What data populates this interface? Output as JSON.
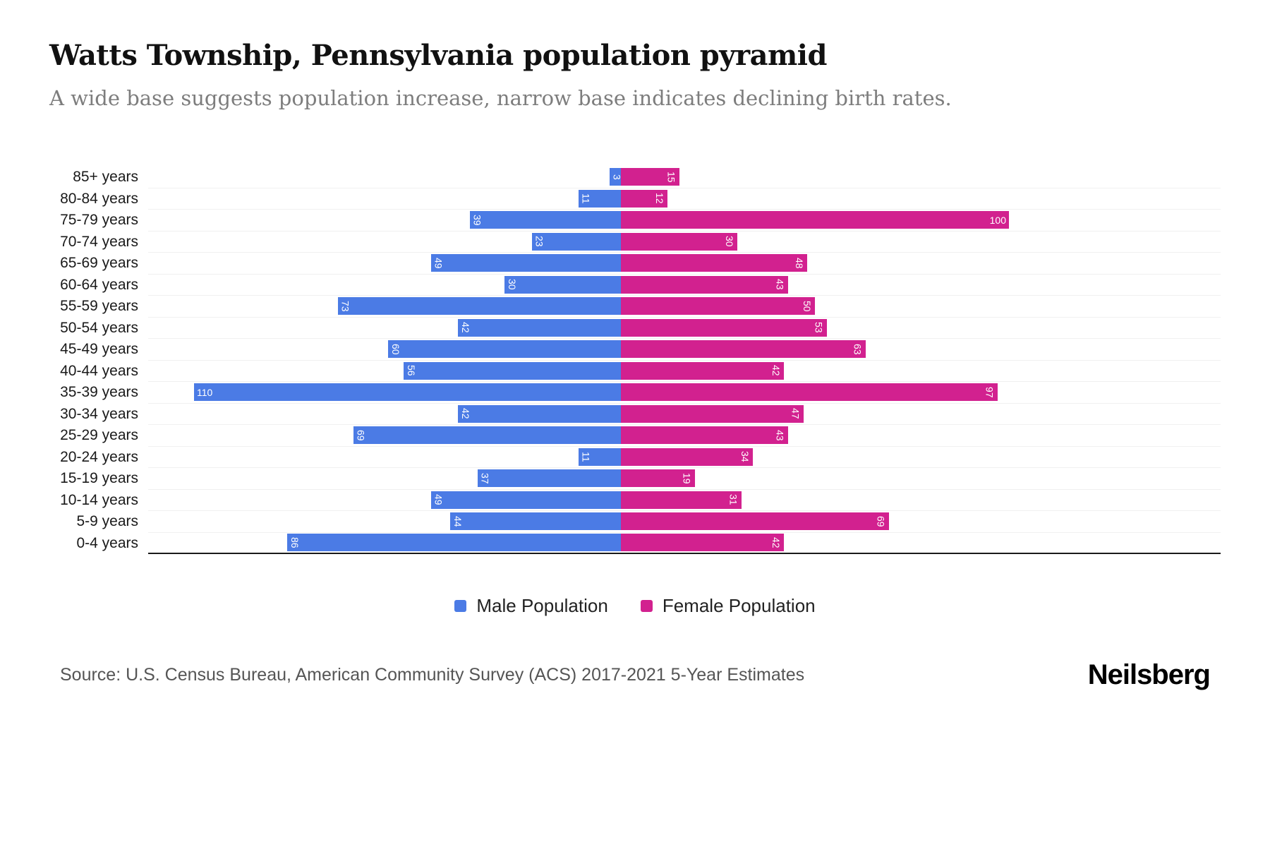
{
  "header": {
    "title": "Watts Township, Pennsylvania population pyramid",
    "subtitle": "A wide base suggests population increase, narrow base indicates declining birth rates."
  },
  "chart_data": {
    "type": "bar",
    "variant": "population-pyramid",
    "orientation": "horizontal",
    "categories": [
      "85+ years",
      "80-84 years",
      "75-79 years",
      "70-74 years",
      "65-69 years",
      "60-64 years",
      "55-59 years",
      "50-54 years",
      "45-49 years",
      "40-44 years",
      "35-39 years",
      "30-34 years",
      "25-29 years",
      "20-24 years",
      "15-19 years",
      "10-14 years",
      "5-9 years",
      "0-4 years"
    ],
    "series": [
      {
        "name": "Male Population",
        "side": "left",
        "color": "#4b7be5",
        "values": [
          3,
          11,
          39,
          23,
          49,
          30,
          73,
          42,
          60,
          56,
          110,
          42,
          69,
          11,
          37,
          49,
          44,
          86
        ]
      },
      {
        "name": "Female Population",
        "side": "right",
        "color": "#d2218f",
        "values": [
          15,
          12,
          100,
          30,
          48,
          43,
          50,
          53,
          63,
          42,
          97,
          47,
          43,
          34,
          19,
          31,
          69,
          42
        ]
      }
    ],
    "value_labels": "inside-bar-end",
    "xlim_left": [
      0,
      122
    ],
    "xlim_right": [
      0,
      112
    ],
    "grid": true,
    "legend_position": "bottom"
  },
  "legend": {
    "male": "Male Population",
    "female": "Female Population"
  },
  "footer": {
    "source": "Source: U.S. Census Bureau, American Community Survey (ACS) 2017-2021 5-Year Estimates",
    "brand": "Neilsberg"
  }
}
